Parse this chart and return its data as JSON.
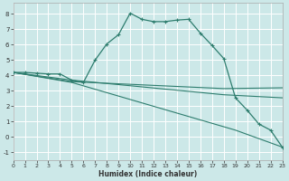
{
  "xlabel": "Humidex (Indice chaleur)",
  "bg_color": "#cce8e8",
  "grid_color": "#ffffff",
  "line_color": "#2e7d6e",
  "xlim": [
    0,
    23
  ],
  "ylim": [
    -1.5,
    8.7
  ],
  "xticks": [
    0,
    1,
    2,
    3,
    4,
    5,
    6,
    7,
    8,
    9,
    10,
    11,
    12,
    13,
    14,
    15,
    16,
    17,
    18,
    19,
    20,
    21,
    22,
    23
  ],
  "yticks": [
    -1,
    0,
    1,
    2,
    3,
    4,
    5,
    6,
    7,
    8
  ],
  "main_line": {
    "x": [
      0,
      1,
      2,
      3,
      4,
      5,
      6,
      7,
      8,
      9,
      10,
      11,
      12,
      13,
      14,
      15,
      16,
      17,
      18,
      19,
      20,
      21,
      22,
      23
    ],
    "y": [
      4.2,
      4.2,
      4.15,
      4.1,
      4.1,
      3.7,
      3.55,
      5.0,
      6.05,
      6.65,
      8.05,
      7.65,
      7.5,
      7.5,
      7.6,
      7.65,
      6.75,
      5.95,
      5.1,
      2.55,
      1.75,
      0.85,
      0.45,
      -0.65
    ]
  },
  "fan_lines": [
    {
      "x": [
        0,
        5,
        18,
        23
      ],
      "y": [
        4.2,
        3.7,
        2.75,
        2.55
      ]
    },
    {
      "x": [
        0,
        5,
        18,
        23
      ],
      "y": [
        4.2,
        3.6,
        3.15,
        3.2
      ]
    },
    {
      "x": [
        0,
        5,
        19,
        23
      ],
      "y": [
        4.2,
        3.55,
        0.45,
        -0.65
      ]
    }
  ]
}
